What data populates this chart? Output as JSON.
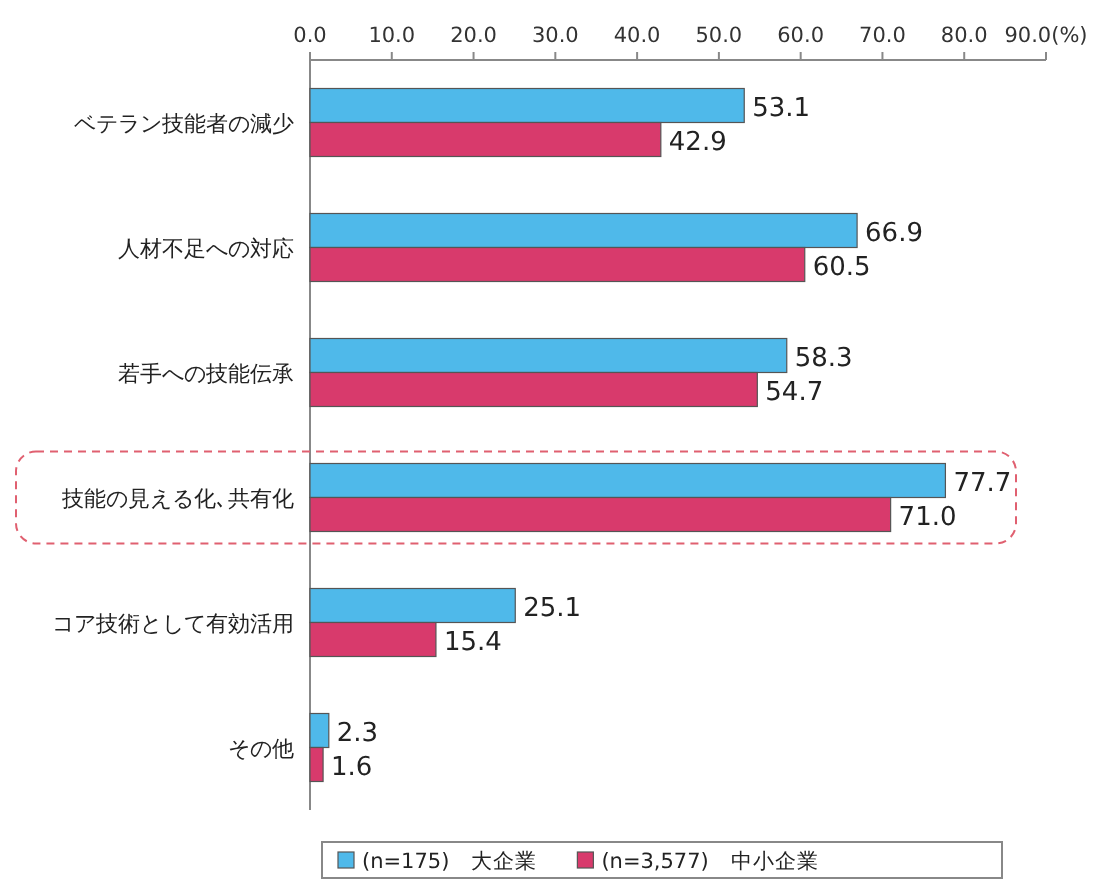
{
  "chart_data": {
    "type": "bar",
    "orientation": "horizontal",
    "categories": [
      "ベテラン技能者の減少",
      "人材不足への対応",
      "若手への技能伝承",
      "技能の見える化､共有化",
      "コア技術として有効活用",
      "その他"
    ],
    "series": [
      {
        "name": "(n=175)　大企業",
        "color": "#4fb9ea",
        "values": [
          53.1,
          66.9,
          58.3,
          77.7,
          25.1,
          2.3
        ],
        "value_labels": [
          "53.1",
          "66.9",
          "58.3",
          "77.7",
          "25.1",
          "2.3"
        ]
      },
      {
        "name": "(n=3,577)　中小企業",
        "color": "#d83a6c",
        "values": [
          42.9,
          60.5,
          54.7,
          71.0,
          15.4,
          1.6
        ],
        "value_labels": [
          "42.9",
          "60.5",
          "54.7",
          "71.0",
          "15.4",
          "1.6"
        ]
      }
    ],
    "xlim": [
      0,
      90
    ],
    "xticks": [
      {
        "value": 0,
        "label": "0.0"
      },
      {
        "value": 10,
        "label": "10.0"
      },
      {
        "value": 20,
        "label": "20.0"
      },
      {
        "value": 30,
        "label": "30.0"
      },
      {
        "value": 40,
        "label": "40.0"
      },
      {
        "value": 50,
        "label": "50.0"
      },
      {
        "value": 60,
        "label": "60.0"
      },
      {
        "value": 70,
        "label": "70.0"
      },
      {
        "value": 80,
        "label": "80.0"
      },
      {
        "value": 90,
        "label": "90.0(%)"
      }
    ],
    "legend": "bottom",
    "grid": false
  }
}
